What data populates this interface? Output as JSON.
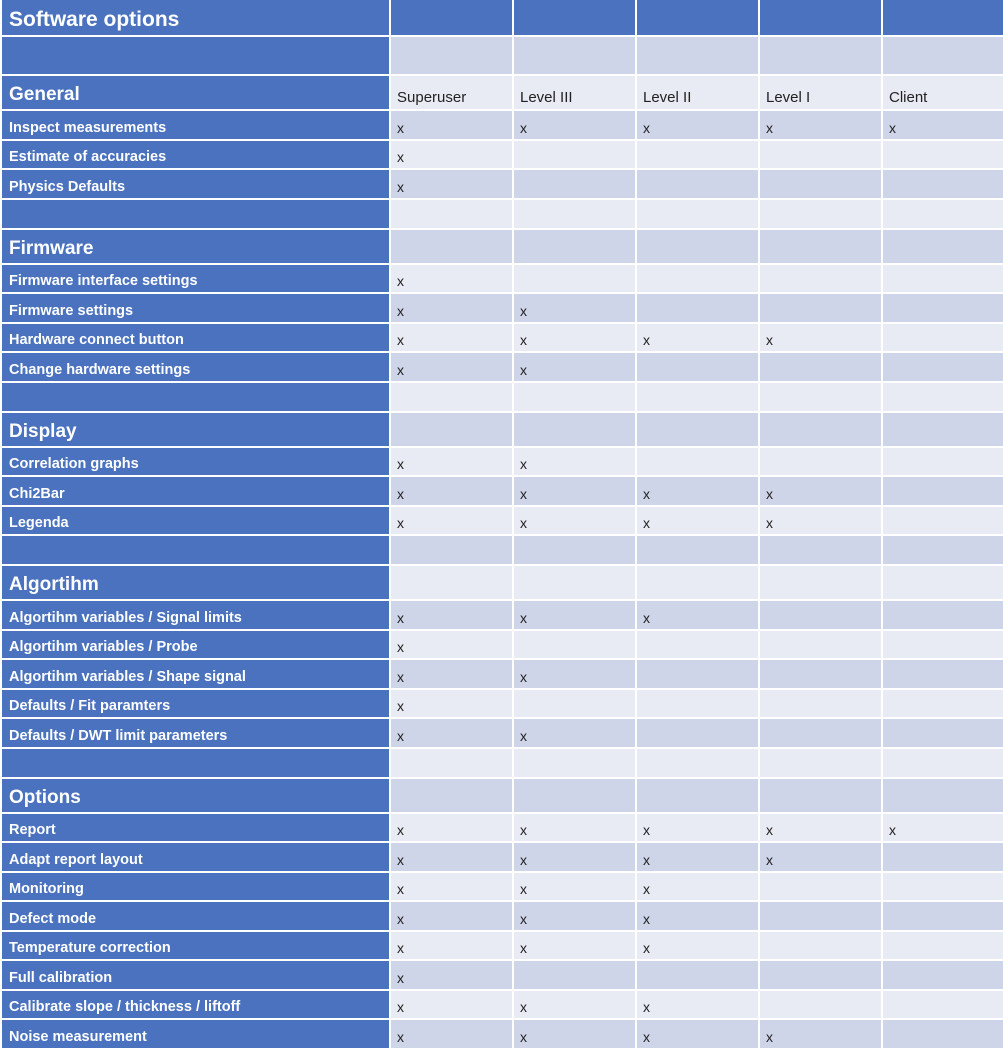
{
  "title": "Software options",
  "columns": [
    "Superuser",
    "Level III",
    "Level II",
    "Level I",
    "Client"
  ],
  "colors": {
    "header_blue": "#4A72BE",
    "band_dark": "#CFD5E9",
    "band_light": "#E8EAF4"
  },
  "mark": "x",
  "sections": [
    {
      "name": "General",
      "show_columns": true,
      "rows": [
        {
          "label": "Inspect measurements",
          "access": [
            true,
            true,
            true,
            true,
            true
          ]
        },
        {
          "label": "Estimate of accuracies",
          "access": [
            true,
            false,
            false,
            false,
            false
          ]
        },
        {
          "label": "Physics Defaults",
          "access": [
            true,
            false,
            false,
            false,
            false
          ]
        }
      ]
    },
    {
      "name": "Firmware",
      "rows": [
        {
          "label": "Firmware interface settings",
          "access": [
            true,
            false,
            false,
            false,
            false
          ]
        },
        {
          "label": "Firmware settings",
          "access": [
            true,
            true,
            false,
            false,
            false
          ]
        },
        {
          "label": "Hardware connect button",
          "access": [
            true,
            true,
            true,
            true,
            false
          ]
        },
        {
          "label": "Change hardware settings",
          "access": [
            true,
            true,
            false,
            false,
            false
          ]
        }
      ]
    },
    {
      "name": "Display",
      "rows": [
        {
          "label": "Correlation graphs",
          "access": [
            true,
            true,
            false,
            false,
            false
          ]
        },
        {
          "label": "Chi2Bar",
          "access": [
            true,
            true,
            true,
            true,
            false
          ]
        },
        {
          "label": "Legenda",
          "access": [
            true,
            true,
            true,
            true,
            false
          ]
        }
      ]
    },
    {
      "name": "Algortihm",
      "rows": [
        {
          "label": "Algortihm variables /  Signal limits",
          "access": [
            true,
            true,
            true,
            false,
            false
          ]
        },
        {
          "label": "Algortihm variables / Probe",
          "access": [
            true,
            false,
            false,
            false,
            false
          ]
        },
        {
          "label": "Algortihm variables / Shape signal",
          "access": [
            true,
            true,
            false,
            false,
            false
          ]
        },
        {
          "label": "Defaults / Fit paramters",
          "access": [
            true,
            false,
            false,
            false,
            false
          ]
        },
        {
          "label": "Defaults / DWT limit parameters",
          "access": [
            true,
            true,
            false,
            false,
            false
          ]
        }
      ]
    },
    {
      "name": "Options",
      "rows": [
        {
          "label": "Report",
          "access": [
            true,
            true,
            true,
            true,
            true
          ]
        },
        {
          "label": "Adapt report layout",
          "access": [
            true,
            true,
            true,
            true,
            false
          ]
        },
        {
          "label": "Monitoring",
          "access": [
            true,
            true,
            true,
            false,
            false
          ]
        },
        {
          "label": "Defect mode",
          "access": [
            true,
            true,
            true,
            false,
            false
          ]
        },
        {
          "label": "Temperature correction",
          "access": [
            true,
            true,
            true,
            false,
            false
          ]
        },
        {
          "label": "Full calibration",
          "access": [
            true,
            false,
            false,
            false,
            false
          ]
        },
        {
          "label": "Calibrate slope / thickness / liftoff",
          "access": [
            true,
            true,
            true,
            false,
            false
          ]
        },
        {
          "label": "Noise measurement",
          "access": [
            true,
            true,
            true,
            true,
            false
          ]
        }
      ]
    }
  ]
}
